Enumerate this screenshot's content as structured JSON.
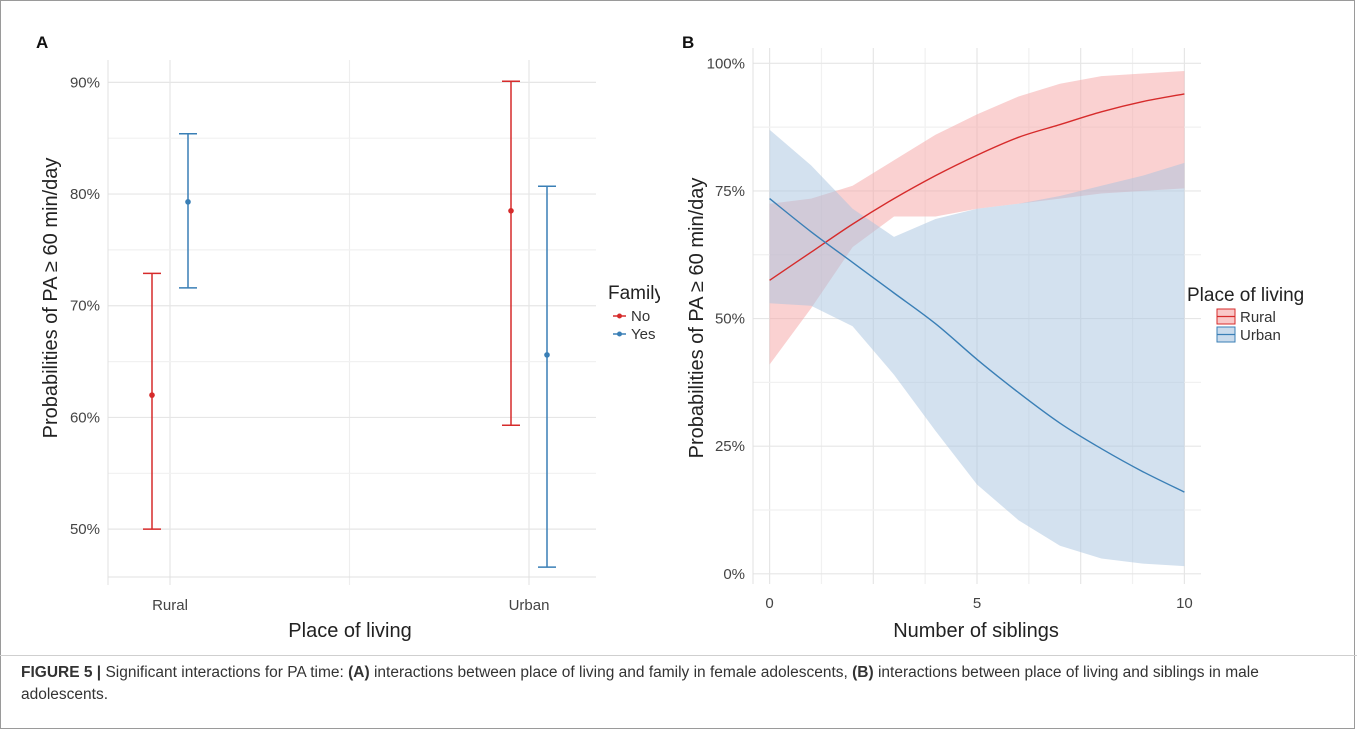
{
  "caption": {
    "figure_label": "FIGURE 5 |",
    "part1": " Significant interactions for PA time: ",
    "a_tag": "(A)",
    "part2": " interactions between place of living and family in female adolescents, ",
    "b_tag": "(B)",
    "part3": " interactions between place of living and siblings in male adolescents."
  },
  "colors": {
    "red": "#d62b2b",
    "blue": "#3a7fb6",
    "red_fill": "#f5a3a3",
    "blue_fill": "#a7c3df",
    "grid": "#e6e6e6"
  },
  "chart_data": [
    {
      "panel": "A",
      "type": "scatter",
      "subtype": "point-errorbar",
      "xlabel": "Place of living",
      "ylabel": "Probabilities of PA ≥ 60 min/day",
      "categories": [
        "Rural",
        "Urban"
      ],
      "yticks": [
        "50%",
        "60%",
        "70%",
        "80%",
        "90%"
      ],
      "ylim": [
        45,
        92
      ],
      "grid": true,
      "legend": {
        "title": "Family",
        "placement": "right",
        "entries": [
          "No",
          "Yes"
        ]
      },
      "series": [
        {
          "name": "No",
          "color": "red",
          "points": [
            {
              "category": "Rural",
              "value": 62.0,
              "lower": 50.0,
              "upper": 72.9
            },
            {
              "category": "Urban",
              "value": 78.5,
              "lower": 59.3,
              "upper": 90.1
            }
          ]
        },
        {
          "name": "Yes",
          "color": "blue",
          "points": [
            {
              "category": "Rural",
              "value": 79.3,
              "lower": 71.6,
              "upper": 85.4
            },
            {
              "category": "Urban",
              "value": 65.6,
              "lower": 46.6,
              "upper": 80.7
            }
          ]
        }
      ]
    },
    {
      "panel": "B",
      "type": "line",
      "subtype": "line-with-confidence-band",
      "xlabel": "Number of siblings",
      "ylabel": "Probabilities of PA ≥ 60 min/day",
      "xticks": [
        "0",
        "5",
        "10"
      ],
      "yticks": [
        "0%",
        "25%",
        "50%",
        "75%",
        "100%"
      ],
      "xlim": [
        -0.4,
        10.4
      ],
      "ylim": [
        -2,
        103
      ],
      "grid": true,
      "legend": {
        "title": "Place of living",
        "placement": "right",
        "entries": [
          "Rural",
          "Urban"
        ]
      },
      "series": [
        {
          "name": "Rural",
          "color": "red",
          "x": [
            0,
            1,
            2,
            3,
            4,
            5,
            6,
            7,
            8,
            9,
            10
          ],
          "values": [
            57.5,
            63.0,
            68.5,
            73.5,
            78.0,
            82.0,
            85.5,
            88.0,
            90.5,
            92.5,
            94.0
          ],
          "lower": [
            41.0,
            52.0,
            64.0,
            70.0,
            70.0,
            71.5,
            72.5,
            73.5,
            74.5,
            75.0,
            75.5
          ],
          "upper": [
            72.5,
            73.5,
            76.0,
            81.0,
            86.0,
            90.0,
            93.5,
            96.0,
            97.5,
            98.0,
            98.5
          ]
        },
        {
          "name": "Urban",
          "color": "blue",
          "x": [
            0,
            1,
            2,
            3,
            4,
            5,
            6,
            7,
            8,
            9,
            10
          ],
          "values": [
            73.5,
            67.0,
            61.0,
            55.0,
            49.0,
            42.0,
            35.5,
            29.5,
            24.5,
            20.0,
            16.0
          ],
          "lower": [
            53.0,
            52.5,
            48.5,
            39.0,
            28.0,
            17.5,
            10.5,
            5.5,
            3.0,
            2.0,
            1.5
          ],
          "upper": [
            87.0,
            80.0,
            71.5,
            66.0,
            69.5,
            71.5,
            72.5,
            74.0,
            76.0,
            78.0,
            80.5
          ]
        }
      ]
    }
  ]
}
